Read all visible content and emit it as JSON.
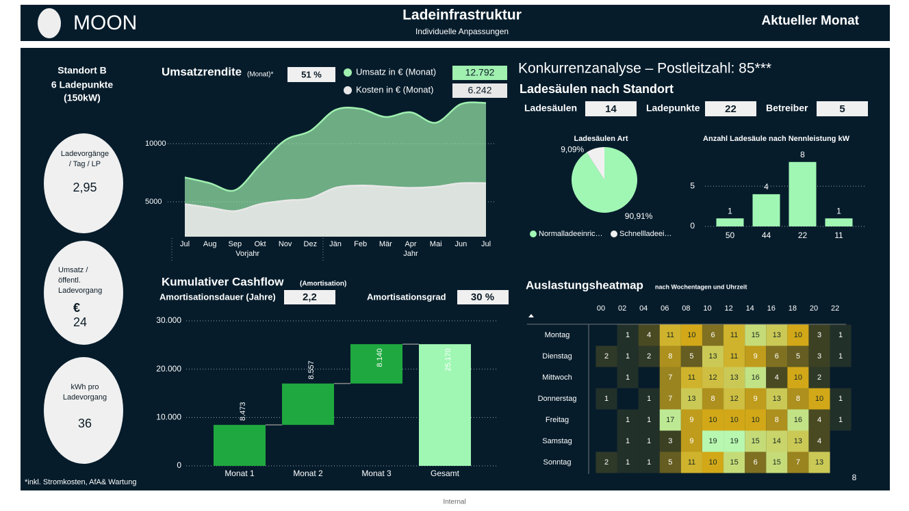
{
  "header": {
    "logo": "MOON",
    "title": "Ladeinfrastruktur",
    "subtitle": "Individuelle Anpassungen",
    "period": "Aktueller Monat"
  },
  "site": {
    "name": "Standort B",
    "points": "6 Ladepunkte",
    "power": "(150kW)"
  },
  "kpis": [
    {
      "label_lines": [
        "Ladevorgänge",
        "/ Tag / LP"
      ],
      "value": "2,95"
    },
    {
      "label_lines": [
        "Umsatz /",
        "öffentl.",
        "Ladevorgang"
      ],
      "unit": "€",
      "value": "24"
    },
    {
      "label_lines": [
        "kWh pro",
        "Ladevorgang"
      ],
      "value": "36"
    }
  ],
  "competition": {
    "title": "Konkurrenzanalyse – Postleitzahl: 85***",
    "subtitle": "Ladesäulen nach Standort",
    "stats": [
      {
        "label": "Ladesäulen",
        "value": "14"
      },
      {
        "label": "Ladepunkte",
        "value": "22"
      },
      {
        "label": "Betreiber",
        "value": "5"
      }
    ]
  },
  "footnote": "*inkl. Stromkosten, AfA& Wartung",
  "page_number": "8",
  "classification": "Internal",
  "chart_data": [
    {
      "type": "area",
      "title": "Umsatzrendite",
      "title_note": "(Monat)*",
      "kpi": "51 %",
      "groups": [
        {
          "name": "Vorjahr",
          "categories": [
            "Jul",
            "Aug",
            "Sep",
            "Okt",
            "Nov",
            "Dez"
          ]
        },
        {
          "name": "Jahr",
          "categories": [
            "Jän",
            "Feb",
            "Mär",
            "Apr",
            "Mai",
            "Jun",
            "Jul"
          ]
        }
      ],
      "series": [
        {
          "name": "Umsatz in € (Monat)",
          "color": "#a0f0b0",
          "total_label": "12.792",
          "values": [
            7100,
            6600,
            6000,
            8200,
            10300,
            11100,
            12900,
            13000,
            12300,
            12700,
            11800,
            13400,
            13500
          ]
        },
        {
          "name": "Kosten in € (Monat)",
          "color": "#e8e8e8",
          "total_label": "6.242",
          "values": [
            4800,
            4500,
            4200,
            4800,
            5100,
            5300,
            6200,
            6400,
            6300,
            6200,
            6300,
            6600,
            6600
          ]
        }
      ],
      "ylim": [
        2000,
        14000
      ],
      "yticks": [
        5000,
        10000
      ],
      "grid": true
    },
    {
      "type": "waterfall",
      "title": "Kumulativer Cashflow",
      "title_note": "(Amortisation)",
      "kpis": [
        {
          "label": "Amortisationsdauer (Jahre)",
          "value": "2,2"
        },
        {
          "label": "Amortisationsgrad",
          "value": "30 %"
        }
      ],
      "categories": [
        "Monat 1",
        "Monat 2",
        "Monat 3",
        "Gesamt"
      ],
      "values": [
        8473,
        8557,
        8140,
        25170
      ],
      "value_labels": [
        "8.473",
        "8.557",
        "8.140",
        "25.170"
      ],
      "totals": [
        false,
        false,
        false,
        true
      ],
      "color": "#1fa83f",
      "total_color": "#a0f7b4",
      "ylim": [
        0,
        30000
      ],
      "yticks": [
        {
          "value": 0,
          "label": "0"
        },
        {
          "value": 10000,
          "label": "10.000"
        },
        {
          "value": 20000,
          "label": "20.000"
        },
        {
          "value": 30000,
          "label": "30.000"
        }
      ],
      "grid": true
    },
    {
      "type": "pie",
      "title": "Ladesäulen Art",
      "categories": [
        "Normalladeeinric…",
        "Schnellladeei…"
      ],
      "values": [
        90.91,
        9.09
      ],
      "value_labels": [
        "90,91%",
        "9,09%"
      ],
      "colors": [
        "#a0f7b4",
        "#f0f0f0"
      ]
    },
    {
      "type": "bar",
      "title": "Anzahl Ladesäule nach Nennleistung kW",
      "categories": [
        "50",
        "44",
        "22",
        "11"
      ],
      "values": [
        1,
        4,
        8,
        1
      ],
      "color": "#a0f7b4",
      "ylim": [
        0,
        9
      ],
      "yticks": [
        0,
        5
      ],
      "grid": true
    },
    {
      "type": "heatmap",
      "title": "Auslastungsheatmap",
      "subtitle": "nach Wochentagen und Uhrzeit",
      "columns": [
        "00",
        "02",
        "04",
        "06",
        "08",
        "10",
        "12",
        "14",
        "16",
        "18",
        "20",
        "22"
      ],
      "rows": [
        "Montag",
        "Dienstag",
        "Mittwoch",
        "Donnerstag",
        "Freitag",
        "Samstag",
        "Sonntag"
      ],
      "values": [
        [
          null,
          1,
          4,
          11,
          10,
          6,
          11,
          15,
          13,
          10,
          3,
          1
        ],
        [
          2,
          1,
          2,
          8,
          5,
          13,
          11,
          9,
          6,
          5,
          3,
          1
        ],
        [
          null,
          1,
          null,
          7,
          11,
          12,
          13,
          16,
          4,
          10,
          2,
          null
        ],
        [
          1,
          null,
          1,
          7,
          13,
          8,
          12,
          9,
          13,
          8,
          10,
          1
        ],
        [
          null,
          1,
          1,
          17,
          9,
          10,
          10,
          10,
          8,
          16,
          4,
          1
        ],
        [
          null,
          1,
          1,
          3,
          9,
          19,
          19,
          15,
          14,
          13,
          4,
          null
        ],
        [
          2,
          1,
          1,
          5,
          11,
          10,
          15,
          6,
          15,
          7,
          13,
          null
        ]
      ],
      "color_scale": [
        {
          "value": 0,
          "color": "#13272b"
        },
        {
          "value": 4,
          "color": "#4a4a22"
        },
        {
          "value": 7,
          "color": "#9a8420"
        },
        {
          "value": 10,
          "color": "#d2a818"
        },
        {
          "value": 14,
          "color": "#c9d46a"
        },
        {
          "value": 19,
          "color": "#b7f7b0"
        }
      ]
    }
  ]
}
